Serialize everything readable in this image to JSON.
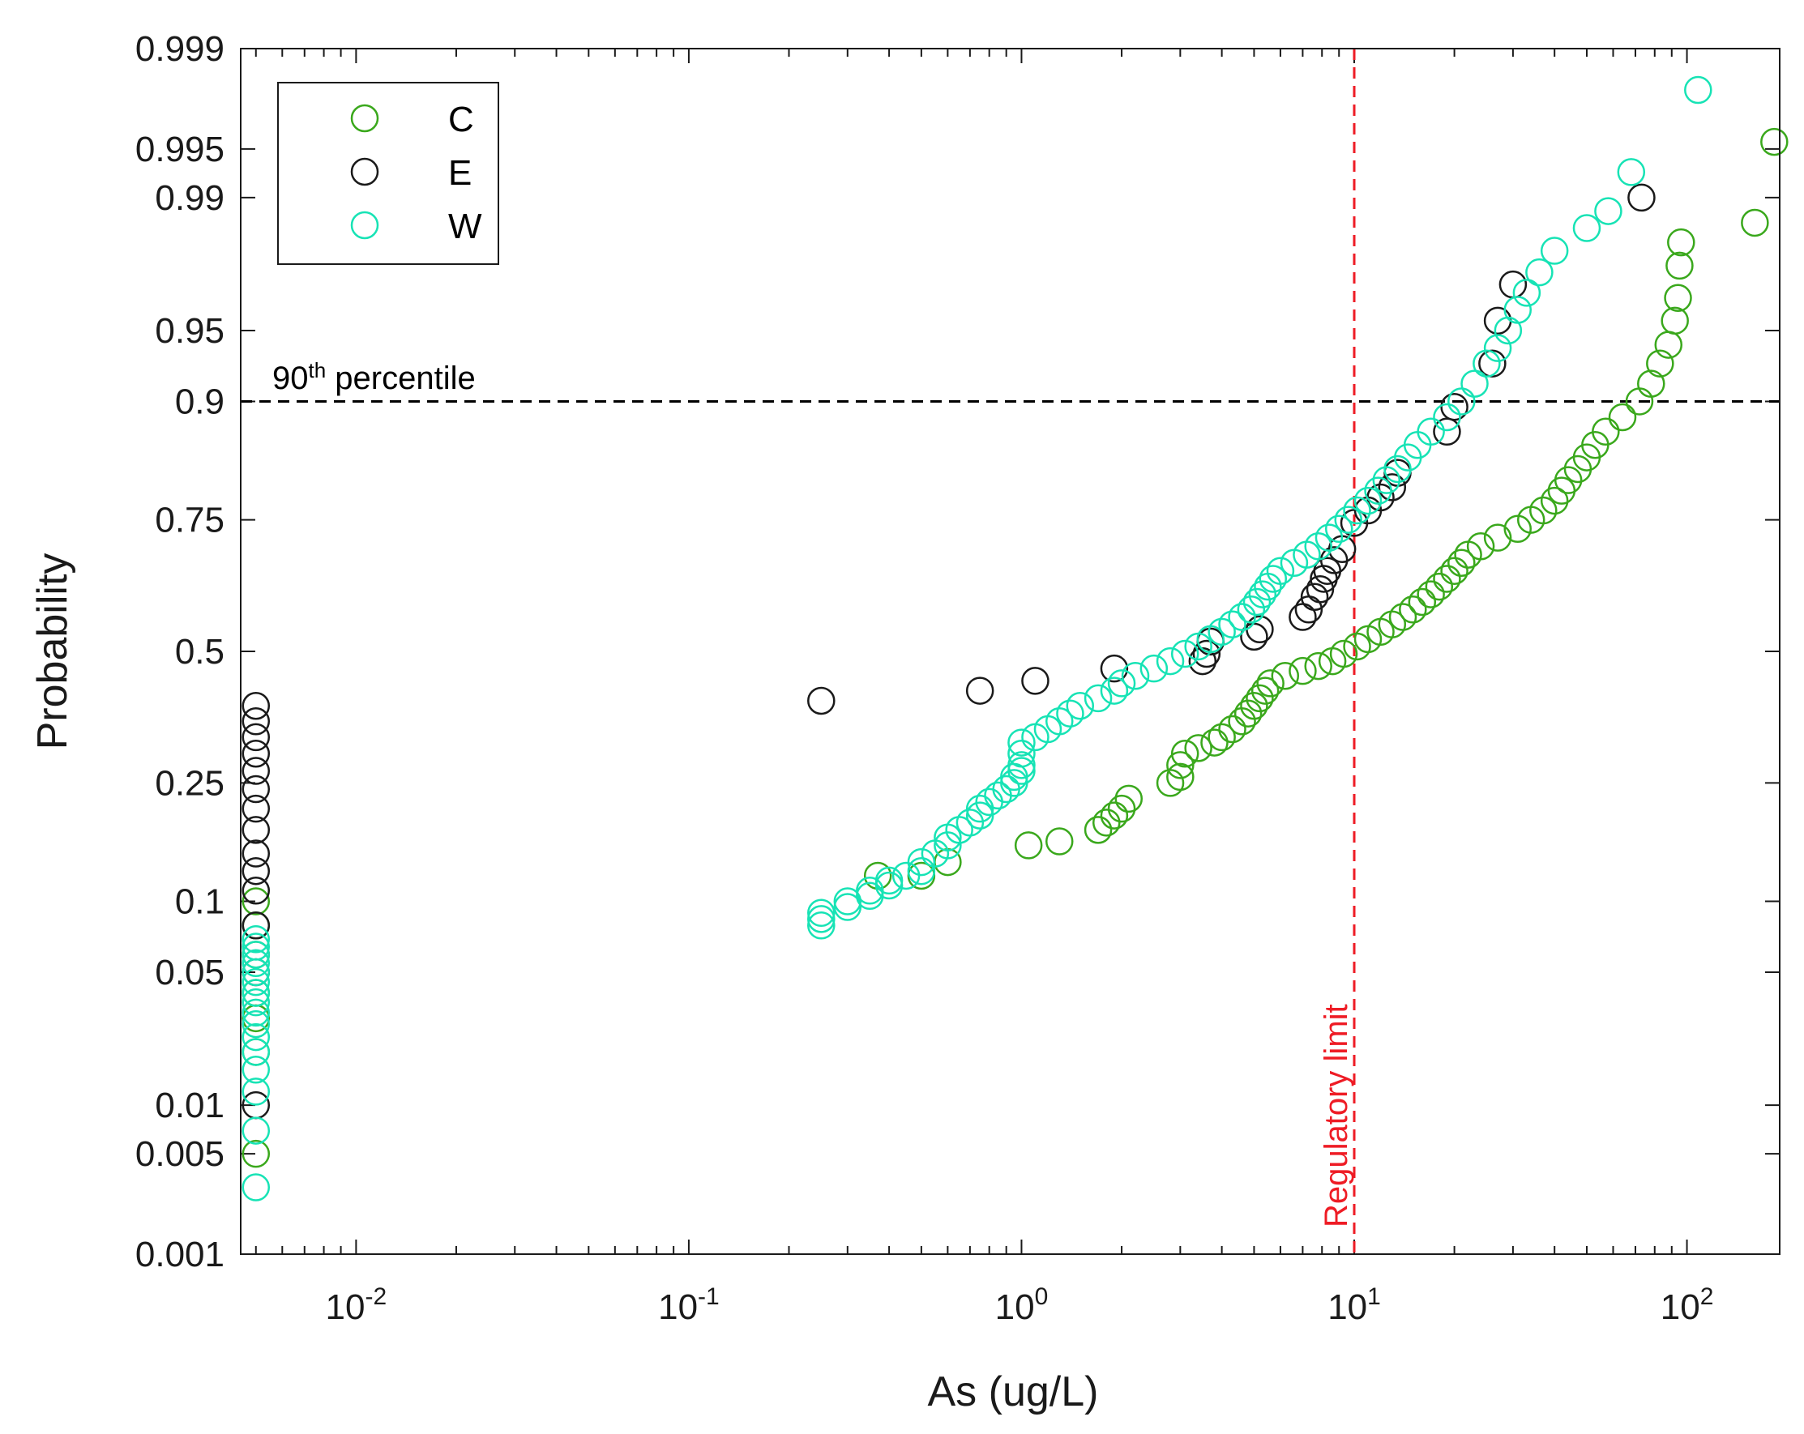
{
  "chart_data": {
    "type": "scatter",
    "xscale": "log",
    "yscale": "probability",
    "xlabel": "As (ug/L)",
    "ylabel": "Probability",
    "xlim": [
      0.0045,
      190
    ],
    "ylim": [
      0.001,
      0.999
    ],
    "x_ticks": [
      {
        "value": 0.01,
        "base": "10",
        "exp": "-2"
      },
      {
        "value": 0.1,
        "base": "10",
        "exp": "-1"
      },
      {
        "value": 1,
        "base": "10",
        "exp": "0"
      },
      {
        "value": 10,
        "base": "10",
        "exp": "1"
      },
      {
        "value": 100,
        "base": "10",
        "exp": "2"
      }
    ],
    "y_ticks": [
      {
        "value": 0.001,
        "label": "0.001"
      },
      {
        "value": 0.005,
        "label": "0.005"
      },
      {
        "value": 0.01,
        "label": "0.01"
      },
      {
        "value": 0.05,
        "label": "0.05"
      },
      {
        "value": 0.1,
        "label": "0.1"
      },
      {
        "value": 0.25,
        "label": "0.25"
      },
      {
        "value": 0.5,
        "label": "0.5"
      },
      {
        "value": 0.75,
        "label": "0.75"
      },
      {
        "value": 0.9,
        "label": "0.9"
      },
      {
        "value": 0.95,
        "label": "0.95"
      },
      {
        "value": 0.99,
        "label": "0.99"
      },
      {
        "value": 0.995,
        "label": "0.995"
      },
      {
        "value": 0.999,
        "label": "0.999"
      }
    ],
    "reference_lines": {
      "percentile": {
        "value": 0.9,
        "label_main": "90",
        "label_sup": "th",
        "label_rest": " percentile",
        "color": "#000000"
      },
      "regulatory": {
        "value": 10,
        "label": "Regulatory limit",
        "color": "#ee1c25"
      }
    },
    "legend": {
      "position": "top-left"
    },
    "series": [
      {
        "name": "C",
        "color": "#3aa81c",
        "points": [
          [
            0.005,
            0.005
          ],
          [
            0.005,
            0.02
          ],
          [
            0.005,
            0.03
          ],
          [
            0.005,
            0.04
          ],
          [
            0.005,
            0.06
          ],
          [
            0.005,
            0.08
          ],
          [
            0.005,
            0.1
          ],
          [
            0.5,
            0.125
          ],
          [
            0.6,
            0.14
          ],
          [
            0.37,
            0.125
          ],
          [
            1.05,
            0.16
          ],
          [
            1.3,
            0.165
          ],
          [
            1.7,
            0.18
          ],
          [
            1.8,
            0.19
          ],
          [
            1.9,
            0.2
          ],
          [
            2.0,
            0.21
          ],
          [
            2.1,
            0.225
          ],
          [
            2.8,
            0.25
          ],
          [
            3.0,
            0.26
          ],
          [
            3.0,
            0.28
          ],
          [
            3.1,
            0.3
          ],
          [
            3.4,
            0.31
          ],
          [
            3.8,
            0.32
          ],
          [
            4.0,
            0.33
          ],
          [
            4.3,
            0.345
          ],
          [
            4.6,
            0.36
          ],
          [
            4.8,
            0.375
          ],
          [
            5.0,
            0.39
          ],
          [
            5.2,
            0.405
          ],
          [
            5.4,
            0.42
          ],
          [
            5.6,
            0.435
          ],
          [
            6.2,
            0.45
          ],
          [
            7.0,
            0.46
          ],
          [
            7.8,
            0.47
          ],
          [
            8.6,
            0.48
          ],
          [
            9.3,
            0.495
          ],
          [
            10.2,
            0.51
          ],
          [
            11.0,
            0.525
          ],
          [
            12.0,
            0.54
          ],
          [
            13.0,
            0.555
          ],
          [
            14.0,
            0.57
          ],
          [
            15.0,
            0.585
          ],
          [
            16.0,
            0.6
          ],
          [
            17.0,
            0.615
          ],
          [
            18.0,
            0.63
          ],
          [
            19.0,
            0.645
          ],
          [
            20.0,
            0.66
          ],
          [
            21.0,
            0.675
          ],
          [
            22.0,
            0.69
          ],
          [
            24.0,
            0.705
          ],
          [
            27.0,
            0.72
          ],
          [
            31.0,
            0.735
          ],
          [
            34.0,
            0.75
          ],
          [
            37.0,
            0.765
          ],
          [
            40.0,
            0.78
          ],
          [
            42.0,
            0.795
          ],
          [
            44.0,
            0.81
          ],
          [
            47.0,
            0.825
          ],
          [
            50.0,
            0.84
          ],
          [
            53.0,
            0.855
          ],
          [
            57.0,
            0.87
          ],
          [
            64.0,
            0.885
          ],
          [
            72.0,
            0.9
          ],
          [
            78.0,
            0.915
          ],
          [
            83.0,
            0.93
          ],
          [
            88.0,
            0.942
          ],
          [
            92.0,
            0.955
          ],
          [
            94.0,
            0.965
          ],
          [
            95.0,
            0.976
          ],
          [
            96.0,
            0.982
          ],
          [
            160.0,
            0.986
          ],
          [
            183.0,
            0.9955
          ]
        ]
      },
      {
        "name": "E",
        "color": "#1a1a1a",
        "points": [
          [
            0.005,
            0.01
          ],
          [
            0.005,
            0.05
          ],
          [
            0.005,
            0.08
          ],
          [
            0.005,
            0.11
          ],
          [
            0.005,
            0.13
          ],
          [
            0.005,
            0.15
          ],
          [
            0.005,
            0.18
          ],
          [
            0.005,
            0.21
          ],
          [
            0.005,
            0.24
          ],
          [
            0.005,
            0.27
          ],
          [
            0.005,
            0.3
          ],
          [
            0.005,
            0.33
          ],
          [
            0.005,
            0.36
          ],
          [
            0.005,
            0.39
          ],
          [
            0.25,
            0.4
          ],
          [
            0.75,
            0.42
          ],
          [
            1.1,
            0.44
          ],
          [
            1.9,
            0.465
          ],
          [
            3.5,
            0.48
          ],
          [
            3.6,
            0.495
          ],
          [
            3.7,
            0.52
          ],
          [
            5.0,
            0.53
          ],
          [
            5.2,
            0.545
          ],
          [
            7.0,
            0.57
          ],
          [
            7.3,
            0.585
          ],
          [
            7.6,
            0.61
          ],
          [
            7.9,
            0.625
          ],
          [
            8.1,
            0.645
          ],
          [
            8.3,
            0.66
          ],
          [
            8.7,
            0.68
          ],
          [
            9.2,
            0.7
          ],
          [
            10.0,
            0.745
          ],
          [
            11.0,
            0.765
          ],
          [
            12.0,
            0.785
          ],
          [
            13.0,
            0.8
          ],
          [
            13.5,
            0.82
          ],
          [
            19.0,
            0.87
          ],
          [
            20.0,
            0.895
          ],
          [
            26.0,
            0.93
          ],
          [
            27.0,
            0.955
          ],
          [
            30.0,
            0.97
          ],
          [
            73.0,
            0.99
          ]
        ]
      },
      {
        "name": "W",
        "color": "#17e3b5",
        "points": [
          [
            0.005,
            0.003
          ],
          [
            0.005,
            0.007
          ],
          [
            0.005,
            0.012
          ],
          [
            0.005,
            0.016
          ],
          [
            0.005,
            0.02
          ],
          [
            0.005,
            0.024
          ],
          [
            0.005,
            0.028
          ],
          [
            0.005,
            0.032
          ],
          [
            0.005,
            0.036
          ],
          [
            0.005,
            0.04
          ],
          [
            0.005,
            0.045
          ],
          [
            0.005,
            0.05
          ],
          [
            0.005,
            0.055
          ],
          [
            0.005,
            0.06
          ],
          [
            0.005,
            0.065
          ],
          [
            0.005,
            0.07
          ],
          [
            0.25,
            0.08
          ],
          [
            0.25,
            0.085
          ],
          [
            0.25,
            0.09
          ],
          [
            0.3,
            0.095
          ],
          [
            0.3,
            0.1
          ],
          [
            0.35,
            0.105
          ],
          [
            0.35,
            0.11
          ],
          [
            0.4,
            0.115
          ],
          [
            0.4,
            0.12
          ],
          [
            0.45,
            0.125
          ],
          [
            0.5,
            0.13
          ],
          [
            0.5,
            0.14
          ],
          [
            0.55,
            0.15
          ],
          [
            0.6,
            0.16
          ],
          [
            0.6,
            0.17
          ],
          [
            0.65,
            0.18
          ],
          [
            0.7,
            0.19
          ],
          [
            0.75,
            0.2
          ],
          [
            0.75,
            0.21
          ],
          [
            0.8,
            0.22
          ],
          [
            0.85,
            0.23
          ],
          [
            0.9,
            0.24
          ],
          [
            0.95,
            0.25
          ],
          [
            0.95,
            0.26
          ],
          [
            1.0,
            0.27
          ],
          [
            1.0,
            0.28
          ],
          [
            1.0,
            0.3
          ],
          [
            1.0,
            0.32
          ],
          [
            1.1,
            0.33
          ],
          [
            1.2,
            0.345
          ],
          [
            1.3,
            0.36
          ],
          [
            1.4,
            0.375
          ],
          [
            1.5,
            0.39
          ],
          [
            1.7,
            0.405
          ],
          [
            1.9,
            0.42
          ],
          [
            2.0,
            0.435
          ],
          [
            2.2,
            0.45
          ],
          [
            2.5,
            0.465
          ],
          [
            2.8,
            0.48
          ],
          [
            3.1,
            0.495
          ],
          [
            3.4,
            0.51
          ],
          [
            3.7,
            0.525
          ],
          [
            4.0,
            0.54
          ],
          [
            4.3,
            0.555
          ],
          [
            4.6,
            0.57
          ],
          [
            4.9,
            0.585
          ],
          [
            5.1,
            0.6
          ],
          [
            5.3,
            0.615
          ],
          [
            5.5,
            0.63
          ],
          [
            5.7,
            0.645
          ],
          [
            6.0,
            0.66
          ],
          [
            6.6,
            0.675
          ],
          [
            7.2,
            0.69
          ],
          [
            7.8,
            0.705
          ],
          [
            8.4,
            0.72
          ],
          [
            9.0,
            0.735
          ],
          [
            9.6,
            0.75
          ],
          [
            10.2,
            0.765
          ],
          [
            11.0,
            0.78
          ],
          [
            11.8,
            0.795
          ],
          [
            12.5,
            0.81
          ],
          [
            13.5,
            0.825
          ],
          [
            14.5,
            0.84
          ],
          [
            15.5,
            0.855
          ],
          [
            17.0,
            0.87
          ],
          [
            19.0,
            0.885
          ],
          [
            21.0,
            0.9
          ],
          [
            23.0,
            0.915
          ],
          [
            25.0,
            0.93
          ],
          [
            27.0,
            0.94
          ],
          [
            29.0,
            0.95
          ],
          [
            31.0,
            0.96
          ],
          [
            33.0,
            0.967
          ],
          [
            36.0,
            0.974
          ],
          [
            40.0,
            0.98
          ],
          [
            50.0,
            0.985
          ],
          [
            58.0,
            0.988
          ],
          [
            68.0,
            0.993
          ],
          [
            108.0,
            0.998
          ]
        ]
      }
    ]
  }
}
